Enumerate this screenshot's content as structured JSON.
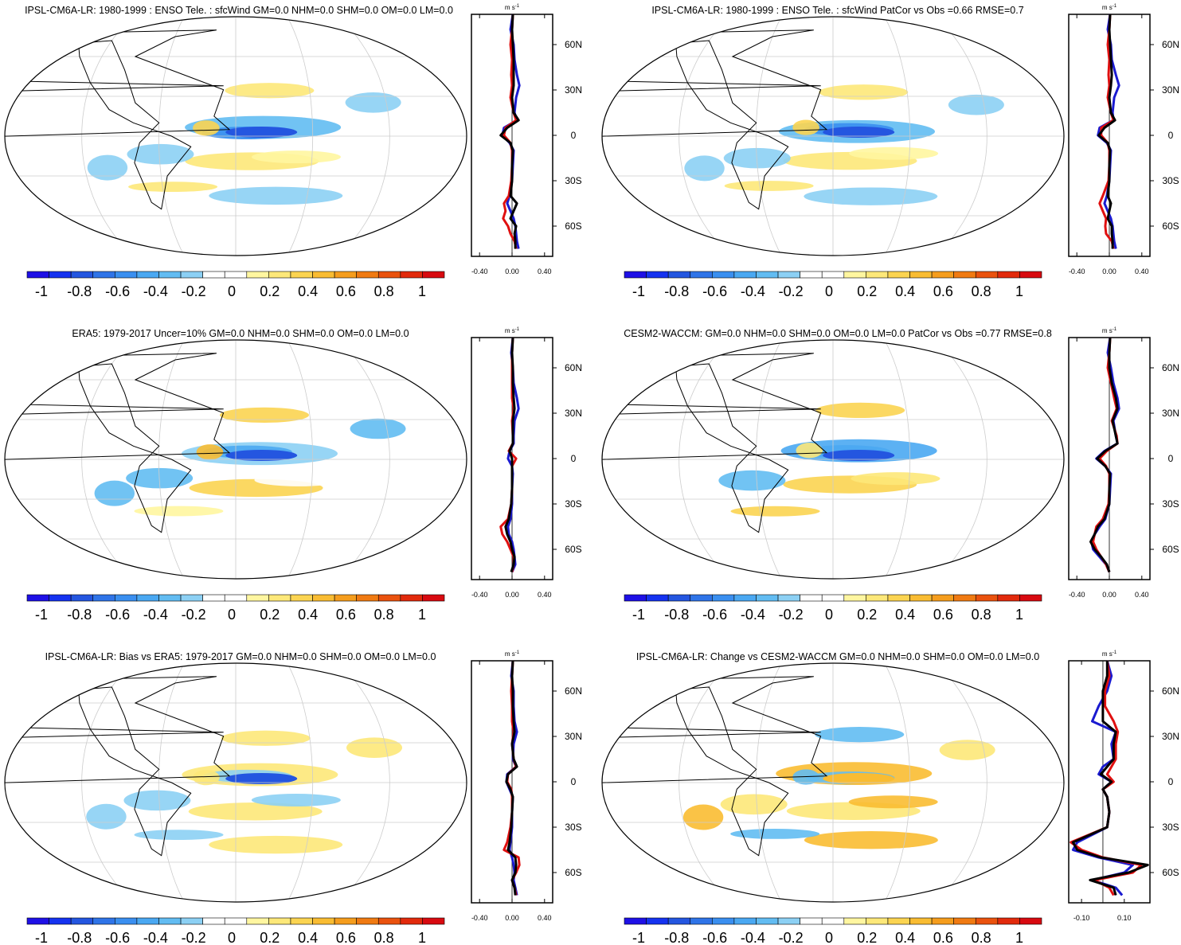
{
  "figure": {
    "colorbar": {
      "tick_labels": [
        "-1",
        "-0.8",
        "-0.6",
        "-0.4",
        "-0.2",
        "0",
        "0.2",
        "0.4",
        "0.6",
        "0.8",
        "1"
      ],
      "colors": [
        "#1e10e6",
        "#1532f0",
        "#2456e0",
        "#2f74e8",
        "#3a8ff0",
        "#4aa8f2",
        "#62bcf2",
        "#8cd0f4",
        "#ffffff",
        "#ffffff",
        "#fff6a0",
        "#fde879",
        "#fbd451",
        "#f9bc32",
        "#f59d1d",
        "#f07a12",
        "#ea520e",
        "#e22a0c",
        "#d80a10"
      ]
    },
    "lat_labels": [
      "60N",
      "30N",
      "0",
      "30S",
      "60S"
    ],
    "unit_label": "m s-1",
    "gridline_color": "#cccccc"
  },
  "chart_data": [
    {
      "type": "map",
      "title": "IPSL-CM6A-LR: 1980-1999 : ENSO Tele. : sfcWind GM=0.0 NHM=0.0 SHM=0.0 OM=0.0 LM=0.0",
      "zonal_mean": {
        "x_tick_labels": [
          "-0.40",
          "0.00",
          "0.40"
        ],
        "xlim": [
          -0.5,
          0.5
        ],
        "ylim": [
          -80,
          80
        ],
        "lat": [
          80,
          70,
          60,
          50,
          40,
          33,
          25,
          15,
          10,
          5,
          0,
          -5,
          -10,
          -20,
          -30,
          -40,
          -45,
          -50,
          -55,
          -60,
          -65,
          -70,
          -75
        ],
        "series": [
          {
            "name": "blue",
            "color": "#1a1ad0",
            "values": [
              0.01,
              -0.02,
              0.02,
              0.03,
              0.06,
              0.09,
              0.05,
              0.03,
              0.06,
              -0.1,
              -0.12,
              -0.03,
              0.02,
              0.01,
              0.0,
              -0.03,
              -0.06,
              -0.02,
              0.02,
              0.04,
              0.05,
              0.06,
              0.08
            ]
          },
          {
            "name": "red",
            "color": "#e01010",
            "values": [
              0.01,
              0.0,
              -0.02,
              0.0,
              -0.01,
              0.0,
              -0.02,
              0.02,
              0.05,
              -0.08,
              -0.1,
              -0.02,
              0.0,
              0.0,
              -0.01,
              -0.04,
              -0.1,
              -0.08,
              -0.11,
              -0.05,
              -0.02,
              0.03,
              0.05
            ]
          },
          {
            "name": "black",
            "color": "#000000",
            "values": [
              0.01,
              0.0,
              0.01,
              0.02,
              0.02,
              0.02,
              0.0,
              0.02,
              0.08,
              -0.06,
              -0.14,
              -0.02,
              0.01,
              0.0,
              0.0,
              -0.02,
              0.06,
              0.02,
              -0.02,
              0.05,
              0.03,
              0.04,
              0.04
            ]
          }
        ]
      }
    },
    {
      "type": "map",
      "title": "IPSL-CM6A-LR: 1980-1999 : ENSO Tele. : sfcWind PatCor vs Obs =0.66 RMSE=0.7",
      "zonal_mean": {
        "x_tick_labels": [
          "-0.40",
          "0.00",
          "0.40"
        ],
        "xlim": [
          -0.5,
          0.5
        ],
        "ylim": [
          -80,
          80
        ],
        "lat": [
          80,
          70,
          60,
          50,
          40,
          33,
          25,
          15,
          10,
          5,
          0,
          -5,
          -10,
          -20,
          -30,
          -40,
          -45,
          -50,
          -55,
          -60,
          -65,
          -70,
          -75
        ],
        "series": [
          {
            "name": "blue",
            "color": "#1a1ad0",
            "values": [
              0.01,
              -0.02,
              0.02,
              0.03,
              0.08,
              0.12,
              0.06,
              0.04,
              0.05,
              -0.12,
              -0.14,
              -0.03,
              0.02,
              0.01,
              0.0,
              -0.03,
              -0.06,
              -0.02,
              0.02,
              0.04,
              0.05,
              0.06,
              0.08
            ]
          },
          {
            "name": "red",
            "color": "#e01010",
            "values": [
              0.01,
              0.0,
              -0.02,
              0.0,
              -0.01,
              0.0,
              -0.02,
              0.02,
              0.05,
              -0.1,
              -0.1,
              -0.02,
              0.0,
              0.0,
              -0.01,
              -0.08,
              -0.12,
              -0.08,
              -0.04,
              -0.05,
              -0.04,
              0.03,
              0.05
            ]
          },
          {
            "name": "black",
            "color": "#000000",
            "values": [
              0.01,
              0.0,
              0.01,
              0.02,
              0.03,
              0.02,
              0.0,
              0.02,
              0.07,
              -0.06,
              -0.13,
              -0.02,
              0.01,
              0.0,
              0.0,
              -0.02,
              0.02,
              0.0,
              -0.02,
              0.03,
              0.03,
              0.04,
              0.04
            ]
          }
        ]
      }
    },
    {
      "type": "map",
      "title": "ERA5: 1979-2017 Uncer=10% GM=0.0 NHM=0.0 SHM=0.0 OM=0.0 LM=0.0",
      "zonal_mean": {
        "x_tick_labels": [
          "-0.40",
          "0.00",
          "0.40"
        ],
        "xlim": [
          -0.5,
          0.5
        ],
        "ylim": [
          -80,
          80
        ],
        "lat": [
          80,
          70,
          60,
          50,
          40,
          33,
          25,
          15,
          10,
          5,
          0,
          -5,
          -10,
          -20,
          -30,
          -40,
          -45,
          -50,
          -55,
          -60,
          -65,
          -70,
          -75
        ],
        "series": [
          {
            "name": "blue",
            "color": "#1a1ad0",
            "values": [
              0.01,
              -0.01,
              0.01,
              0.02,
              0.06,
              0.08,
              0.03,
              0.02,
              0.02,
              -0.03,
              -0.05,
              0.0,
              0.01,
              0.0,
              0.0,
              -0.02,
              -0.05,
              -0.04,
              0.0,
              0.02,
              0.03,
              0.04,
              0.0
            ]
          },
          {
            "name": "red",
            "color": "#e01010",
            "values": [
              0.01,
              0.0,
              0.0,
              0.0,
              0.0,
              0.02,
              0.0,
              0.01,
              0.01,
              -0.04,
              0.05,
              0.0,
              0.0,
              0.0,
              -0.01,
              -0.05,
              -0.14,
              -0.12,
              -0.06,
              -0.02,
              0.02,
              0.02,
              0.0
            ]
          },
          {
            "name": "black",
            "color": "#000000",
            "values": [
              0.01,
              0.0,
              0.01,
              0.01,
              0.02,
              0.03,
              0.01,
              0.01,
              0.01,
              -0.03,
              0.0,
              0.0,
              0.0,
              0.0,
              -0.01,
              -0.04,
              -0.08,
              -0.06,
              -0.02,
              0.0,
              0.03,
              0.02,
              -0.01
            ]
          }
        ]
      }
    },
    {
      "type": "map",
      "title": "CESM2-WACCM: GM=0.0 NHM=0.0 SHM=0.0 OM=0.0 LM=0.0 PatCor vs Obs =0.77 RMSE=0.8",
      "zonal_mean": {
        "x_tick_labels": [
          "-0.40",
          "0.00",
          "0.40"
        ],
        "xlim": [
          -0.5,
          0.5
        ],
        "ylim": [
          -80,
          80
        ],
        "lat": [
          80,
          70,
          60,
          50,
          40,
          33,
          25,
          15,
          10,
          5,
          0,
          -5,
          -10,
          -20,
          -30,
          -40,
          -45,
          -50,
          -55,
          -60,
          -65,
          -70,
          -75
        ],
        "series": [
          {
            "name": "blue",
            "color": "#1a1ad0",
            "values": [
              0.01,
              -0.02,
              0.02,
              0.05,
              0.1,
              0.12,
              0.05,
              0.08,
              0.1,
              -0.06,
              -0.16,
              -0.05,
              0.02,
              0.01,
              0.0,
              -0.05,
              -0.12,
              -0.18,
              -0.22,
              -0.2,
              -0.12,
              -0.04,
              0.0
            ]
          },
          {
            "name": "red",
            "color": "#e01010",
            "values": [
              0.01,
              0.0,
              -0.02,
              0.02,
              0.06,
              0.09,
              0.03,
              0.09,
              0.1,
              -0.03,
              -0.12,
              -0.04,
              0.0,
              0.0,
              -0.01,
              -0.08,
              -0.16,
              -0.18,
              -0.2,
              -0.16,
              -0.1,
              -0.04,
              0.0
            ]
          },
          {
            "name": "black",
            "color": "#000000",
            "values": [
              0.01,
              0.0,
              0.0,
              0.03,
              0.08,
              0.1,
              0.04,
              0.08,
              0.1,
              -0.05,
              -0.15,
              -0.05,
              0.01,
              0.0,
              0.0,
              -0.06,
              -0.14,
              -0.18,
              -0.23,
              -0.18,
              -0.1,
              -0.03,
              0.0
            ]
          }
        ]
      }
    },
    {
      "type": "map",
      "title": "IPSL-CM6A-LR: Bias vs ERA5: 1979-2017 GM=0.0 NHM=0.0 SHM=0.0 OM=0.0 LM=0.0",
      "zonal_mean": {
        "x_tick_labels": [
          "-0.40",
          "0.00",
          "0.40"
        ],
        "xlim": [
          -0.5,
          0.5
        ],
        "ylim": [
          -80,
          80
        ],
        "lat": [
          80,
          70,
          60,
          50,
          40,
          33,
          25,
          15,
          10,
          5,
          0,
          -5,
          -10,
          -20,
          -30,
          -40,
          -45,
          -50,
          -55,
          -60,
          -65,
          -70,
          -75
        ],
        "series": [
          {
            "name": "blue",
            "color": "#1a1ad0",
            "values": [
              0.01,
              -0.01,
              0.02,
              0.02,
              0.03,
              0.06,
              0.02,
              0.01,
              0.05,
              -0.06,
              -0.07,
              -0.03,
              0.01,
              0.0,
              0.0,
              -0.02,
              -0.03,
              0.0,
              0.02,
              0.03,
              0.02,
              0.04,
              0.06
            ]
          },
          {
            "name": "red",
            "color": "#e01010",
            "values": [
              0.01,
              0.0,
              -0.01,
              0.0,
              0.0,
              0.02,
              0.0,
              0.02,
              0.05,
              -0.05,
              -0.06,
              -0.01,
              0.0,
              0.0,
              -0.02,
              -0.06,
              -0.1,
              0.08,
              0.09,
              0.05,
              0.0,
              0.03,
              0.05
            ]
          },
          {
            "name": "black",
            "color": "#000000",
            "values": [
              0.01,
              0.0,
              0.01,
              0.01,
              0.02,
              0.03,
              0.0,
              0.02,
              0.06,
              -0.05,
              -0.07,
              -0.02,
              0.01,
              0.0,
              -0.01,
              -0.03,
              -0.05,
              0.04,
              0.05,
              0.04,
              0.0,
              0.03,
              0.04
            ]
          }
        ]
      }
    },
    {
      "type": "map",
      "title": "IPSL-CM6A-LR: Change vs CESM2-WACCM GM=0.0 NHM=0.0 SHM=0.0 OM=0.0 LM=0.0",
      "zonal_mean": {
        "x_tick_labels": [
          "-0.10",
          "0.10"
        ],
        "xlim": [
          -0.16,
          0.22
        ],
        "ylim": [
          -80,
          80
        ],
        "lat": [
          80,
          70,
          60,
          50,
          40,
          33,
          25,
          15,
          10,
          5,
          0,
          -5,
          -10,
          -20,
          -30,
          -40,
          -45,
          -50,
          -55,
          -60,
          -65,
          -70,
          -75
        ],
        "series": [
          {
            "name": "blue",
            "color": "#1a1ad0",
            "values": [
              0.02,
              0.04,
              0.02,
              -0.02,
              -0.05,
              0.06,
              0.04,
              0.05,
              0.0,
              -0.02,
              0.04,
              0.0,
              0.02,
              0.03,
              0.02,
              -0.12,
              -0.14,
              -0.02,
              0.14,
              0.1,
              -0.05,
              0.06,
              0.09
            ]
          },
          {
            "name": "red",
            "color": "#e01010",
            "values": [
              0.02,
              0.03,
              0.01,
              0.01,
              0.05,
              0.07,
              0.06,
              0.06,
              0.04,
              0.02,
              0.05,
              0.0,
              0.02,
              0.03,
              0.02,
              -0.15,
              -0.1,
              0.0,
              0.18,
              0.14,
              -0.04,
              0.03,
              0.05
            ]
          },
          {
            "name": "black",
            "color": "#000000",
            "values": [
              0.02,
              0.02,
              0.0,
              0.0,
              0.0,
              0.06,
              0.05,
              0.05,
              0.02,
              -0.01,
              0.04,
              0.0,
              0.02,
              0.03,
              0.02,
              -0.14,
              -0.12,
              -0.01,
              0.21,
              0.12,
              -0.06,
              0.05,
              0.06
            ]
          }
        ]
      }
    }
  ]
}
